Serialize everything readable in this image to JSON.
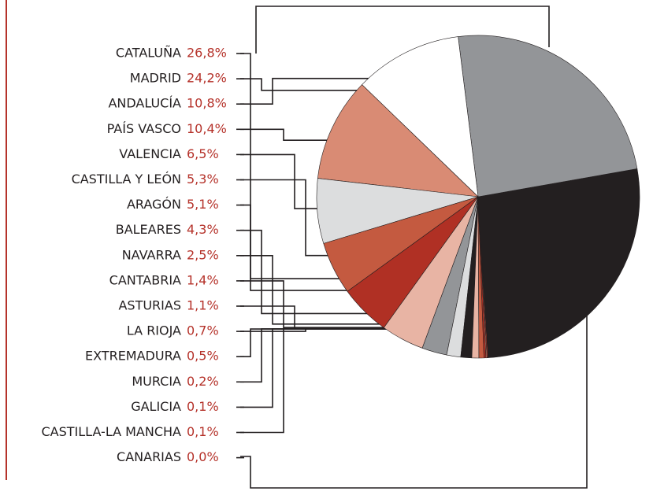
{
  "chart_data": {
    "type": "pie",
    "categories": [
      "CATALUÑA",
      "MADRID",
      "ANDALUCÍA",
      "PAÍS VASCO",
      "VALENCIA",
      "CASTILLA Y LEÓN",
      "ARAGÓN",
      "BALEARES",
      "NAVARRA",
      "CANTABRIA",
      "ASTURIAS",
      "LA RIOJA",
      "EXTREMADURA",
      "MURCIA",
      "GALICIA",
      "CASTILLA-LA MANCHA",
      "CANARIAS"
    ],
    "values": [
      26.8,
      24.2,
      10.8,
      10.4,
      6.5,
      5.3,
      5.1,
      4.3,
      2.5,
      1.4,
      1.1,
      0.7,
      0.5,
      0.2,
      0.1,
      0.1,
      0.0
    ],
    "value_labels": [
      "26,8%",
      "24,2%",
      "10,8%",
      "10,4%",
      "6,5%",
      "5,3%",
      "5,1%",
      "4,3%",
      "2,5%",
      "1,4%",
      "1,1%",
      "0,7%",
      "0,5%",
      "0,2%",
      "0,1%",
      "0,1%",
      "0,0%"
    ],
    "colors": [
      "#231f20",
      "#939598",
      "#ffffff",
      "#d98b74",
      "#dcddde",
      "#c45a40",
      "#b03024",
      "#e8b4a4",
      "#939598",
      "#dcddde",
      "#231f20",
      "#e8b4a4",
      "#c45a40",
      "#b03024",
      "#d98b74",
      "#c0392b",
      "#b03024"
    ]
  }
}
